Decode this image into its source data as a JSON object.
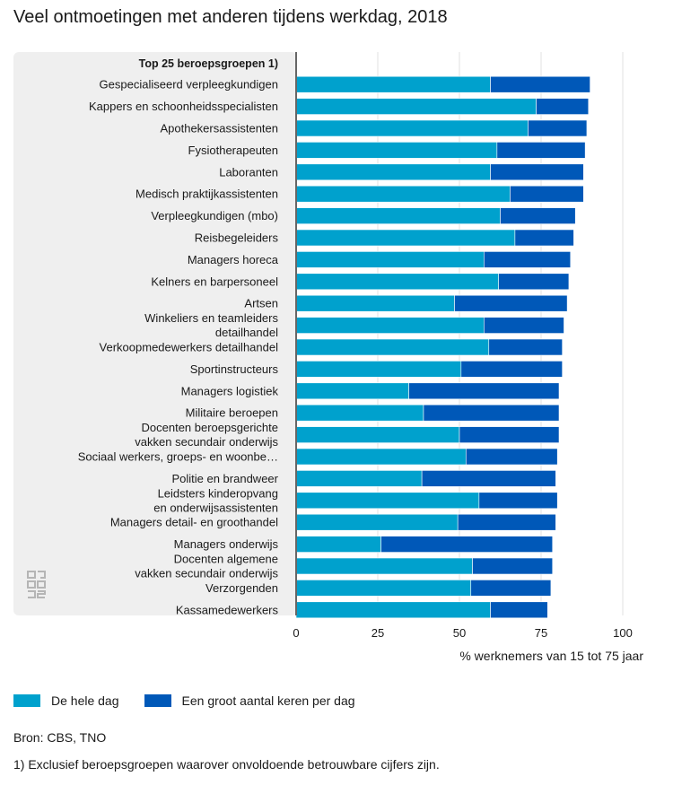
{
  "title": "Veel ontmoetingen met anderen tijdens werkdag, 2018",
  "colors": {
    "series1": "#00a1cd",
    "series2": "#0058b8",
    "panel": "#efefef",
    "axis": "#666666",
    "grid": "#e0e0e0"
  },
  "legend": {
    "item1": "De hele dag",
    "item2": "Een groot aantal keren per dag"
  },
  "source": "Bron: CBS, TNO",
  "footnote": "1) Exclusief beroepsgroepen waarover onvoldoende betrouwbare cijfers zijn.",
  "logo_icon": "cbs-logo-icon",
  "chart_data": {
    "type": "bar",
    "orientation": "horizontal",
    "stacked": true,
    "category_header": "Top 25 beroepsgroepen 1)",
    "xlabel": "% werknemers van 15 tot 75 jaar",
    "xlim": [
      0,
      100
    ],
    "xticks": [
      0,
      25,
      50,
      75,
      100
    ],
    "categories": [
      [
        "Gespecialiseerd verpleegkundigen"
      ],
      [
        "Kappers en schoonheidsspecialisten"
      ],
      [
        "Apothekersassistenten"
      ],
      [
        "Fysiotherapeuten"
      ],
      [
        "Laboranten"
      ],
      [
        "Medisch praktijkassistenten"
      ],
      [
        "Verpleegkundigen (mbo)"
      ],
      [
        "Reisbegeleiders"
      ],
      [
        "Managers horeca"
      ],
      [
        "Kelners en barpersoneel"
      ],
      [
        "Artsen"
      ],
      [
        "Winkeliers en teamleiders",
        "detailhandel"
      ],
      [
        "Verkoopmedewerkers detailhandel"
      ],
      [
        "Sportinstructeurs"
      ],
      [
        "Managers logistiek"
      ],
      [
        "Militaire beroepen"
      ],
      [
        "Docenten beroepsgerichte",
        "vakken secundair onderwijs"
      ],
      [
        "Sociaal werkers, groeps- en woonbe…"
      ],
      [
        "Politie en brandweer"
      ],
      [
        "Leidsters kinderopvang",
        "en onderwijsassistenten"
      ],
      [
        "Managers detail- en groothandel"
      ],
      [
        "Managers onderwijs"
      ],
      [
        "Docenten algemene",
        "vakken secundair onderwijs"
      ],
      [
        "Verzorgenden"
      ],
      [
        "Kassamedewerkers"
      ]
    ],
    "series": [
      {
        "name": "De hele dag",
        "values": [
          59.5,
          73.5,
          71,
          61.5,
          59.5,
          65.5,
          62.5,
          67,
          57.5,
          62,
          48.5,
          57.5,
          59,
          50.5,
          34.5,
          39,
          50,
          52,
          38.5,
          56,
          49.5,
          26,
          54,
          53.5,
          59.5
        ]
      },
      {
        "name": "Een groot aantal keren per dag",
        "values": [
          30.5,
          16,
          18,
          27,
          28.5,
          22.5,
          23,
          18,
          26.5,
          21.5,
          34.5,
          24.5,
          22.5,
          31,
          46,
          41.5,
          30.5,
          28,
          41,
          24,
          30,
          52.5,
          24.5,
          24.5,
          17.5
        ]
      }
    ]
  }
}
